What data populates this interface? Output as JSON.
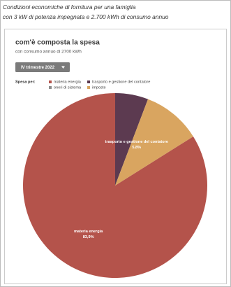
{
  "chart_data": {
    "type": "pie",
    "header": [
      "Condizioni economiche di fornitura per una famiglia",
      "con 3 kW di potenza impegnata e 2.700 kWh di consumo annuo"
    ],
    "title": "com'è composta la spesa",
    "subtitle": "con consumo annuo di 2700 kWh",
    "period": "IV trimestre 2022",
    "legend_title": "Spesa per:",
    "categories": [
      "materia energia",
      "trasporto e gestione del contatore",
      "oneri di sistema",
      "imposte"
    ],
    "values": [
      83.9,
      5.8,
      0,
      10.3
    ],
    "value_labels": [
      "83,9%",
      "5,8%",
      null,
      null
    ],
    "colors": [
      "#b4534b",
      "#5c3a50",
      "#8c8c8c",
      "#d9a560"
    ]
  }
}
